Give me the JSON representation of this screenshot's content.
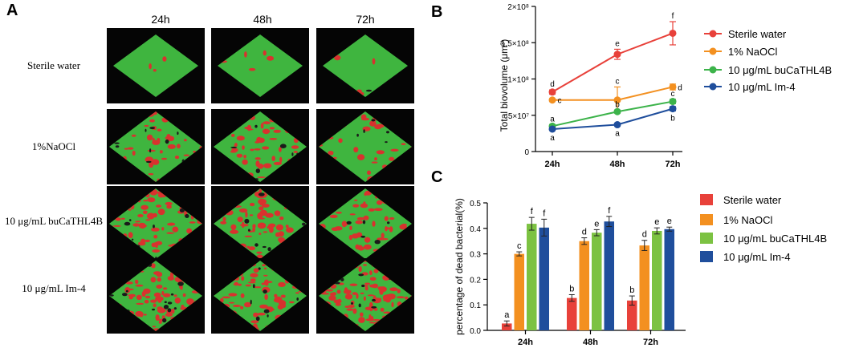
{
  "panels": {
    "a": "A",
    "b": "B",
    "c": "C"
  },
  "microscopy": {
    "times": [
      "24h",
      "48h",
      "72h"
    ],
    "rows": [
      "Sterile water",
      "1%NaOCl",
      "10 μg/mL buCaTHL4B",
      "10 μg/mL Im-4"
    ],
    "dead_coverage": [
      [
        0.02,
        0.03,
        0.05
      ],
      [
        0.25,
        0.35,
        0.3
      ],
      [
        0.45,
        0.4,
        0.35
      ],
      [
        0.55,
        0.45,
        0.55
      ]
    ],
    "colors": {
      "live": "#3fb53f",
      "dead": "#d8322e",
      "bg": "#050505"
    }
  },
  "chart_data": [
    {
      "id": "B",
      "type": "line",
      "title": "",
      "xlabel": "",
      "ylabel": "Total biovolume (μm³)",
      "categories": [
        "24h",
        "48h",
        "72h"
      ],
      "ylim": [
        0,
        200000000
      ],
      "yticks": [
        0,
        50000000,
        100000000,
        150000000,
        200000000
      ],
      "ytick_labels": [
        "0",
        "5×10⁷",
        "1×10⁸",
        "1.5×10⁸",
        "2×10⁸"
      ],
      "legend_position": "right",
      "series": [
        {
          "name": "Sterile water",
          "color": "#e8413a",
          "values": [
            82000000,
            134000000,
            163000000
          ],
          "errors": [
            3000000,
            7000000,
            16000000
          ],
          "letters": [
            "d",
            "e",
            "f"
          ],
          "label_side": "above"
        },
        {
          "name": "1% NaOCl",
          "color": "#f39020",
          "values": [
            71000000,
            71000000,
            89000000
          ],
          "errors": [
            2000000,
            18000000,
            4000000
          ],
          "letters": [
            "c",
            "c",
            "d"
          ],
          "label_side": "right"
        },
        {
          "name": "10 μg/mL buCaTHL4B",
          "color": "#3cb34a",
          "values": [
            35000000,
            55000000,
            69000000
          ],
          "errors": [
            2000000,
            2000000,
            3000000
          ],
          "letters": [
            "a",
            "b",
            "c"
          ],
          "label_side": "above"
        },
        {
          "name": "10 μg/mL Im-4",
          "color": "#1f4e9c",
          "values": [
            31000000,
            37000000,
            59000000
          ],
          "errors": [
            2000000,
            2000000,
            3000000
          ],
          "letters": [
            "a",
            "a",
            "b"
          ],
          "label_side": "below"
        }
      ]
    },
    {
      "id": "C",
      "type": "bar",
      "title": "",
      "xlabel": "",
      "ylabel": "percentage of dead bacterial(%)",
      "categories": [
        "24h",
        "48h",
        "72h"
      ],
      "ylim": [
        0,
        0.5
      ],
      "yticks": [
        0.0,
        0.1,
        0.2,
        0.3,
        0.4,
        0.5
      ],
      "ytick_labels": [
        "0.0",
        "0.1",
        "0.2",
        "0.3",
        "0.4",
        "0.5"
      ],
      "legend_position": "right",
      "series": [
        {
          "name": "Sterile water",
          "color": "#e8413a",
          "values": [
            0.027,
            0.127,
            0.117
          ],
          "errors": [
            0.01,
            0.013,
            0.018
          ],
          "letters": [
            "a",
            "b",
            "b"
          ]
        },
        {
          "name": "1% NaOCl",
          "color": "#f39020",
          "values": [
            0.3,
            0.35,
            0.333
          ],
          "errors": [
            0.008,
            0.013,
            0.02
          ],
          "letters": [
            "c",
            "d",
            "d"
          ]
        },
        {
          "name": "10 μg/mL buCaTHL4B",
          "color": "#7cc242",
          "values": [
            0.418,
            0.383,
            0.39
          ],
          "errors": [
            0.025,
            0.012,
            0.012
          ],
          "letters": [
            "f",
            "e",
            "e"
          ]
        },
        {
          "name": "10 μg/mL Im-4",
          "color": "#1f4e9c",
          "values": [
            0.403,
            0.427,
            0.397
          ],
          "errors": [
            0.033,
            0.02,
            0.008
          ],
          "letters": [
            "f",
            "f",
            "e"
          ]
        }
      ]
    }
  ]
}
